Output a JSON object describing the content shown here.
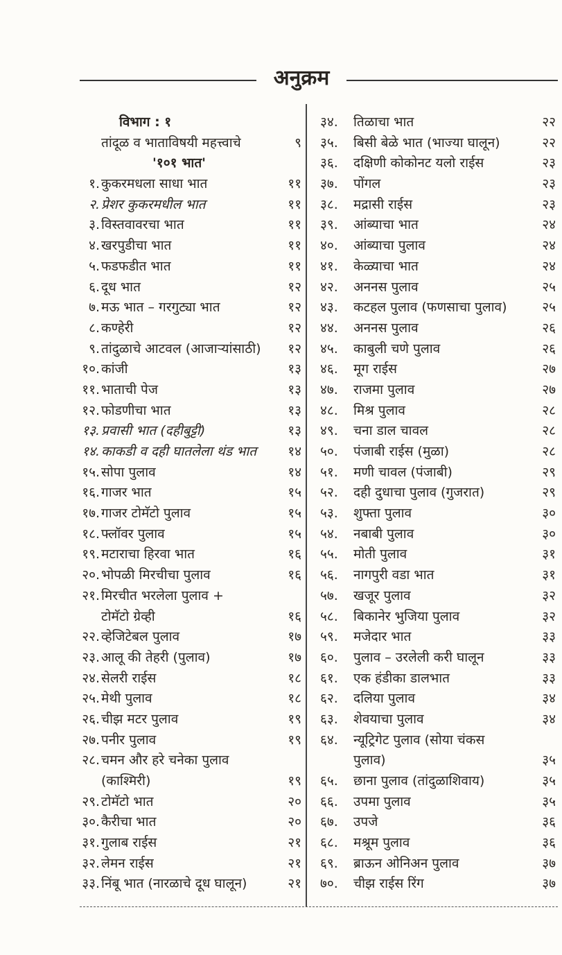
{
  "title": "अनुक्रम",
  "left_column": [
    {
      "num": "",
      "text": "विभाग : १",
      "page": "",
      "style": "heading",
      "indent": "h1"
    },
    {
      "num": "",
      "text": "तांदूळ व भाताविषयी महत्त्वाचे",
      "page": "९",
      "style": "",
      "indent": "h2"
    },
    {
      "num": "",
      "text": "'१०१ भात'",
      "page": "",
      "style": "heading",
      "indent": "h3"
    },
    {
      "num": "१.",
      "text": "कुकरमधला साधा भात",
      "page": "११"
    },
    {
      "num": "२.",
      "text": "प्रेशर कुकरमधील भात",
      "page": "११",
      "style": "italic"
    },
    {
      "num": "३.",
      "text": "विस्तवावरचा भात",
      "page": "११"
    },
    {
      "num": "४.",
      "text": "खरपुडीचा भात",
      "page": "११"
    },
    {
      "num": "५.",
      "text": "फडफडीत भात",
      "page": "११"
    },
    {
      "num": "६.",
      "text": "दूध भात",
      "page": "१२"
    },
    {
      "num": "७.",
      "text": "मऊ भात – गरगुट्या भात",
      "page": "१२"
    },
    {
      "num": "८.",
      "text": "कण्हेरी",
      "page": "१२"
    },
    {
      "num": "९.",
      "text": "तांदुळाचे आटवल (आजाऱ्यांसाठी)",
      "page": "१२"
    },
    {
      "num": "१०.",
      "text": "कांजी",
      "page": "१३"
    },
    {
      "num": "११.",
      "text": "भाताची पेज",
      "page": "१३"
    },
    {
      "num": "१२.",
      "text": "फोडणीचा भात",
      "page": "१३"
    },
    {
      "num": "१३.",
      "text": "प्रवासी भात (दहीबुट्टी)",
      "page": "१३",
      "style": "italic"
    },
    {
      "num": "१४.",
      "text": "काकडी व दही घातलेला थंड भात",
      "page": "१४",
      "style": "italic"
    },
    {
      "num": "१५.",
      "text": "सोपा पुलाव",
      "page": "१४"
    },
    {
      "num": "१६.",
      "text": "गाजर भात",
      "page": "१५"
    },
    {
      "num": "१७.",
      "text": "गाजर टोमॅटो पुलाव",
      "page": "१५"
    },
    {
      "num": "१८.",
      "text": "फ्लॉवर पुलाव",
      "page": "१५"
    },
    {
      "num": "१९.",
      "text": "मटाराचा हिरवा भात",
      "page": "१६"
    },
    {
      "num": "२०.",
      "text": "भोपळी मिरचीचा पुलाव",
      "page": "१६"
    },
    {
      "num": "२१.",
      "text": "मिरचीत भरलेला पुलाव +",
      "page": ""
    },
    {
      "num": "",
      "text": "टोमॅटो ग्रेव्ही",
      "page": "१६"
    },
    {
      "num": "२२.",
      "text": "व्हेजिटेबल पुलाव",
      "page": "१७"
    },
    {
      "num": "२३.",
      "text": "आलू की तेहरी (पुलाव)",
      "page": "१७"
    },
    {
      "num": "२४.",
      "text": "सेलरी राईस",
      "page": "१८"
    },
    {
      "num": "२५.",
      "text": "मेथी पुलाव",
      "page": "१८"
    },
    {
      "num": "२६.",
      "text": "चीझ मटर पुलाव",
      "page": "१९"
    },
    {
      "num": "२७.",
      "text": "पनीर पुलाव",
      "page": "१९"
    },
    {
      "num": "२८.",
      "text": "चमन और हरे चनेका पुलाव",
      "page": ""
    },
    {
      "num": "",
      "text": "(काश्मिरी)",
      "page": "१९"
    },
    {
      "num": "२९.",
      "text": "टोमॅटो भात",
      "page": "२०"
    },
    {
      "num": "३०.",
      "text": "कैरीचा भात",
      "page": "२०"
    },
    {
      "num": "३१.",
      "text": "गुलाब राईस",
      "page": "२१"
    },
    {
      "num": "३२.",
      "text": "लेमन राईस",
      "page": "२१"
    },
    {
      "num": "३३.",
      "text": "निंबू भात (नारळाचे दूध घालून)",
      "page": "२१"
    }
  ],
  "right_column": [
    {
      "num": "३४.",
      "text": "तिळाचा भात",
      "page": "२२"
    },
    {
      "num": "३५.",
      "text": "बिसी बेळे भात (भाज्या घालून)",
      "page": "२२"
    },
    {
      "num": "३६.",
      "text": "दक्षिणी कोकोनट यलो राईस",
      "page": "२३"
    },
    {
      "num": "३७.",
      "text": "पोंगल",
      "page": "२३"
    },
    {
      "num": "३८.",
      "text": "मद्रासी राईस",
      "page": "२३"
    },
    {
      "num": "३९.",
      "text": "आंब्याचा भात",
      "page": "२४"
    },
    {
      "num": "४०.",
      "text": "आंब्याचा पुलाव",
      "page": "२४"
    },
    {
      "num": "४१.",
      "text": "केळ्याचा भात",
      "page": "२४"
    },
    {
      "num": "४२.",
      "text": "अननस पुलाव",
      "page": "२५"
    },
    {
      "num": "४३.",
      "text": "कटहल पुलाव (फणसाचा पुलाव)",
      "page": "२५"
    },
    {
      "num": "४४.",
      "text": "अननस पुलाव",
      "page": "२६"
    },
    {
      "num": "४५.",
      "text": "काबुली चणे पुलाव",
      "page": "२६"
    },
    {
      "num": "४६.",
      "text": "मूग राईस",
      "page": "२७"
    },
    {
      "num": "४७.",
      "text": "राजमा पुलाव",
      "page": "२७"
    },
    {
      "num": "४८.",
      "text": "मिश्र पुलाव",
      "page": "२८"
    },
    {
      "num": "४९.",
      "text": "चना डाल चावल",
      "page": "२८"
    },
    {
      "num": "५०.",
      "text": "पंजाबी राईस (मुळा)",
      "page": "२८"
    },
    {
      "num": "५१.",
      "text": "मणी चावल (पंजाबी)",
      "page": "२९"
    },
    {
      "num": "५२.",
      "text": "दही दुधाचा पुलाव (गुजरात)",
      "page": "२९"
    },
    {
      "num": "५३.",
      "text": "शुफ्ता पुलाव",
      "page": "३०"
    },
    {
      "num": "५४.",
      "text": "नबाबी पुलाव",
      "page": "३०"
    },
    {
      "num": "५५.",
      "text": "मोती पुलाव",
      "page": "३१"
    },
    {
      "num": "५६.",
      "text": "नागपुरी वडा भात",
      "page": "३१"
    },
    {
      "num": "५७.",
      "text": "खजूर पुलाव",
      "page": "३२"
    },
    {
      "num": "५८.",
      "text": "बिकानेर भुजिया पुलाव",
      "page": "३२"
    },
    {
      "num": "५९.",
      "text": "मजेदार भात",
      "page": "३३"
    },
    {
      "num": "६०.",
      "text": "पुलाव – उरलेली करी घालून",
      "page": "३३"
    },
    {
      "num": "६१.",
      "text": "एक हंडीका डालभात",
      "page": "३३"
    },
    {
      "num": "६२.",
      "text": "दलिया पुलाव",
      "page": "३४"
    },
    {
      "num": "६३.",
      "text": "शेवयाचा पुलाव",
      "page": "३४"
    },
    {
      "num": "६४.",
      "text": "न्यूट्रिगेट पुलाव (सोया चंकस",
      "page": ""
    },
    {
      "num": "",
      "text": "पुलाव)",
      "page": "३५"
    },
    {
      "num": "६५.",
      "text": "छाना पुलाव (तांदुळाशिवाय)",
      "page": "३५"
    },
    {
      "num": "६६.",
      "text": "उपमा पुलाव",
      "page": "३५"
    },
    {
      "num": "६७.",
      "text": "उपजे",
      "page": "३६"
    },
    {
      "num": "६८.",
      "text": "मश्रूम पुलाव",
      "page": "३६"
    },
    {
      "num": "६९.",
      "text": "ब्राऊन ओनिअन पुलाव",
      "page": "३७"
    },
    {
      "num": "७०.",
      "text": "चीझ राईस रिंग",
      "page": "३७"
    }
  ]
}
